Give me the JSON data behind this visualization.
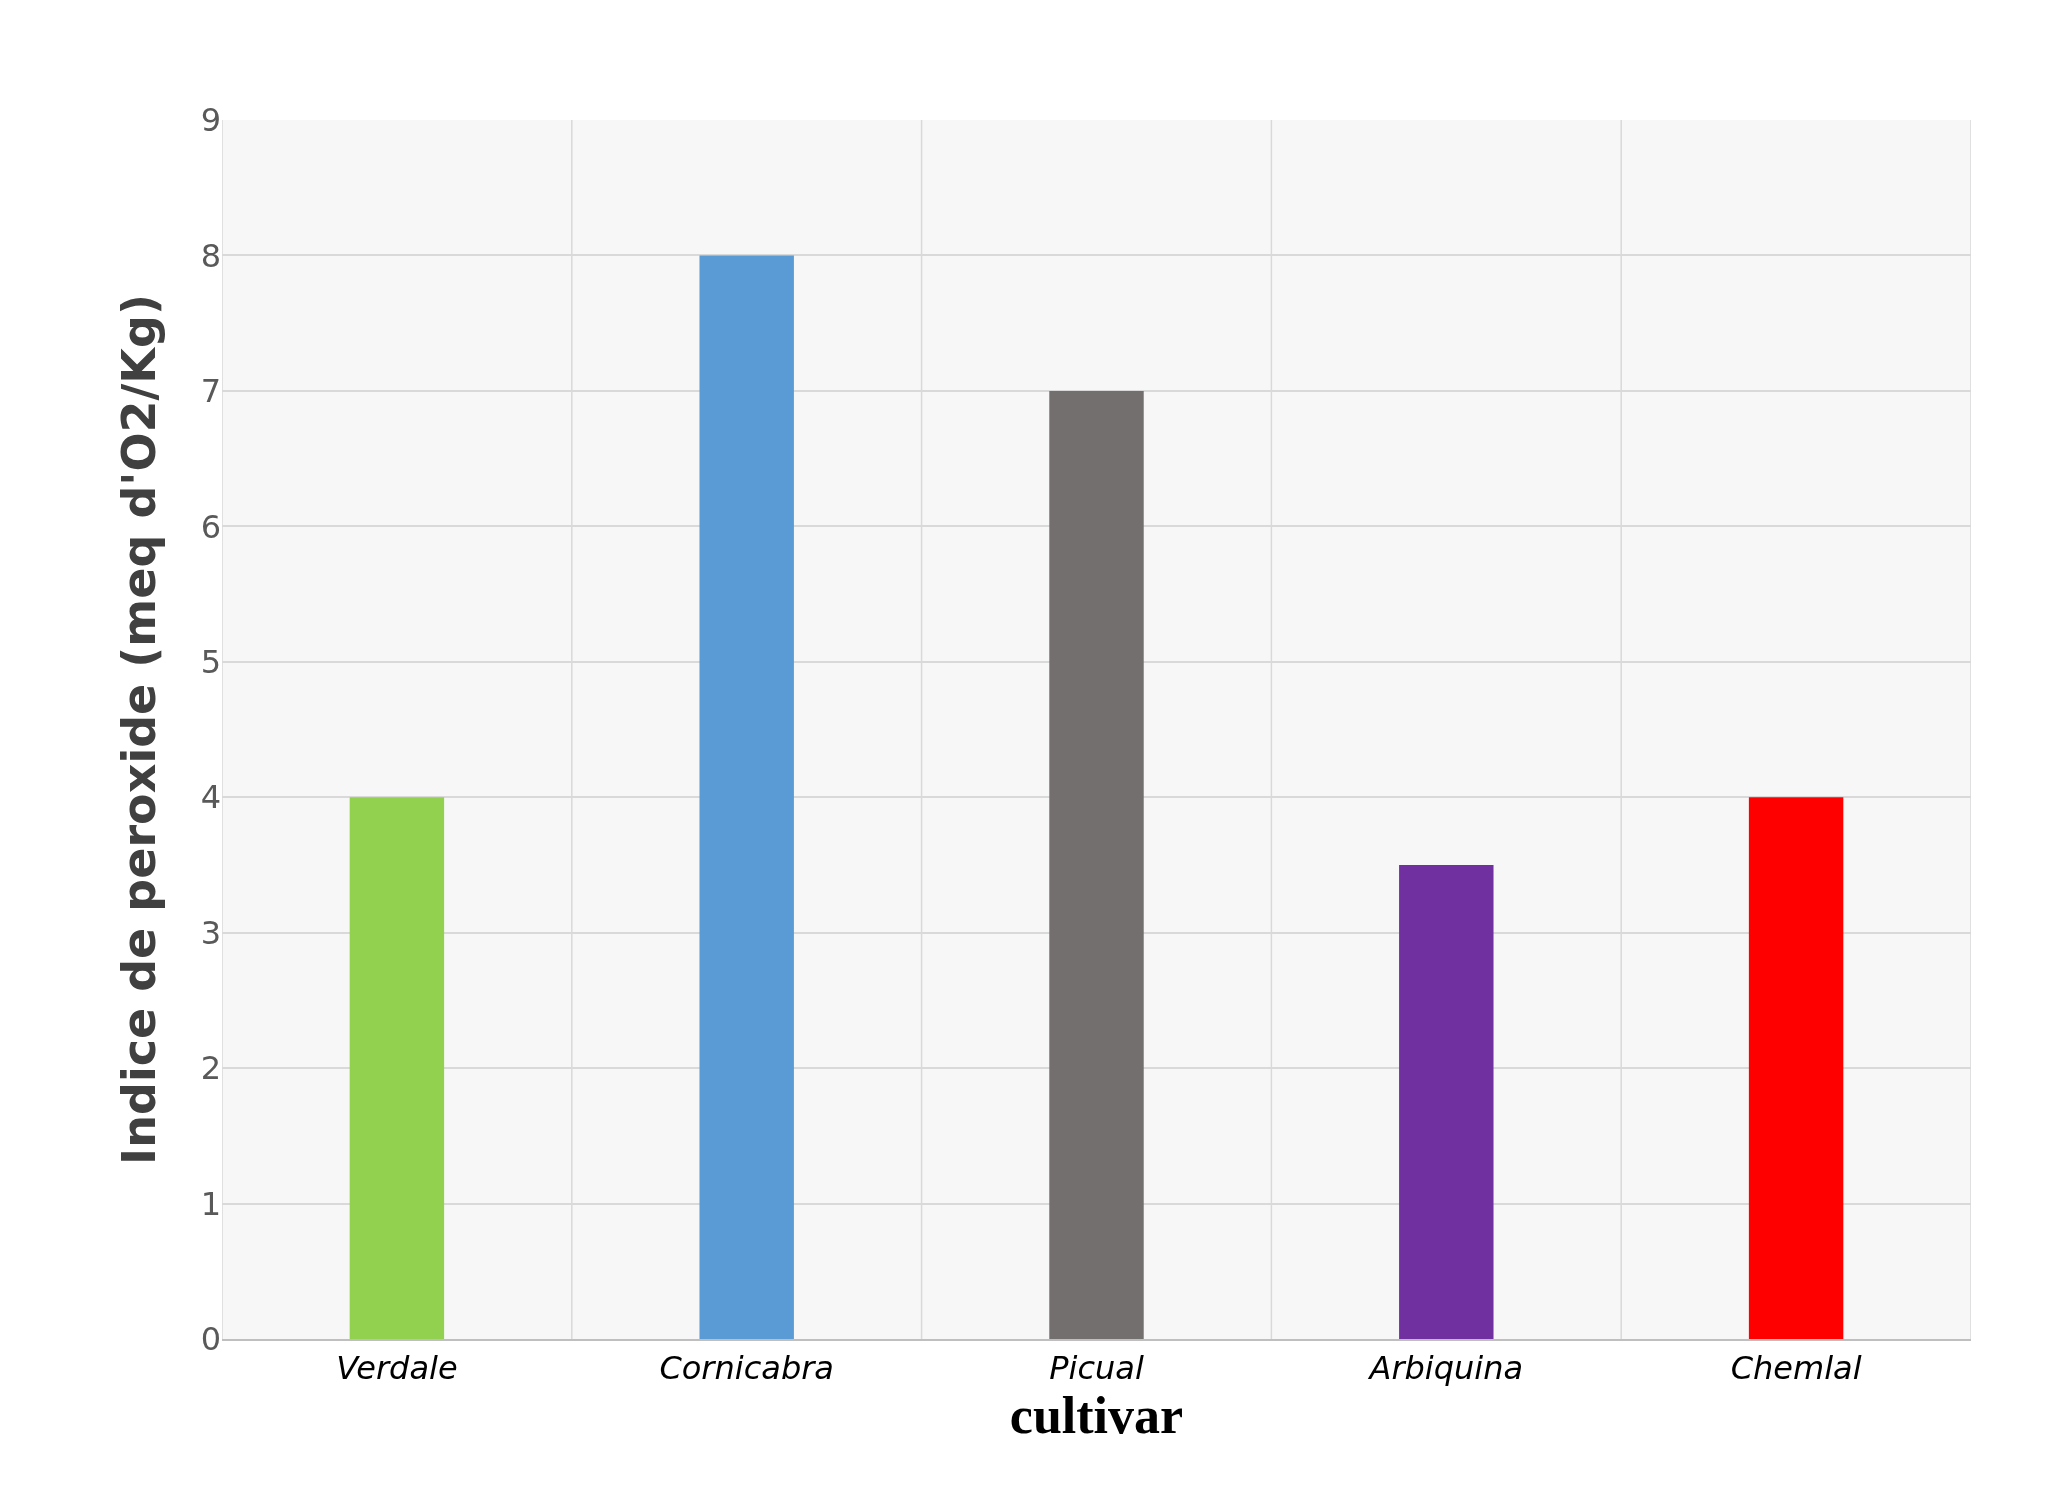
{
  "chart_data": {
    "type": "bar",
    "xlabel": "cultivar",
    "ylabel": "Indice de peroxide (meq d'O2/Kg)",
    "categories": [
      "Verdale",
      "Cornicabra",
      "Picual",
      "Arbiquina",
      "Chemlal"
    ],
    "values": [
      4,
      8,
      7,
      3.5,
      4
    ],
    "colors": [
      "#92d050",
      "#5b9bd5",
      "#736f6e",
      "#7030a0",
      "#ff0000"
    ],
    "ylim": [
      0,
      9
    ],
    "yticks": [
      0,
      1,
      2,
      3,
      4,
      5,
      6,
      7,
      8,
      9
    ],
    "grid": true
  }
}
